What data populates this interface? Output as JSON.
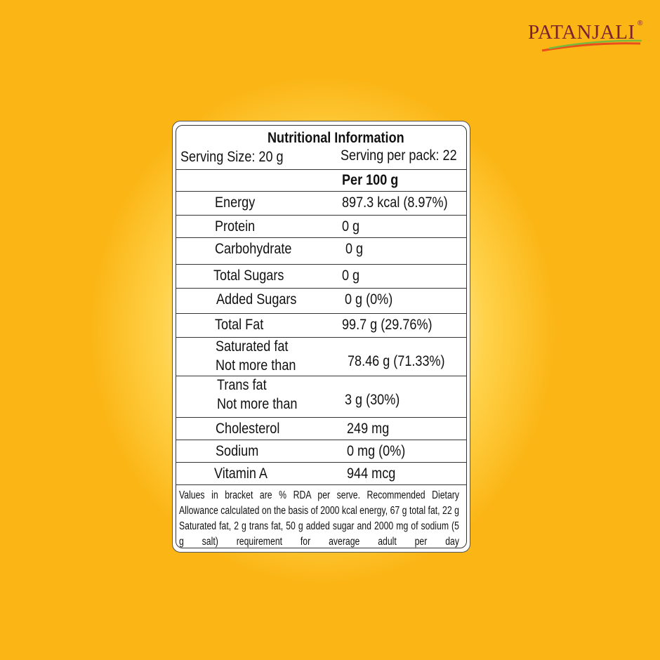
{
  "brand": {
    "logo_text": "PATANJALI",
    "registered_mark": "®"
  },
  "label": {
    "title": "Nutritional Information",
    "serving_size": "Serving Size:  20 g",
    "servings_per_pack": "Serving per pack: 22",
    "column_header": "Per 100 g",
    "rows": [
      {
        "name": "Energy",
        "value": "897.3  kcal (8.97%)"
      },
      {
        "name": "Protein",
        "value": "0 g"
      },
      {
        "name": "Carbohydrate",
        "value": "0 g"
      },
      {
        "name": "Total Sugars",
        "value": "0 g"
      },
      {
        "name": "Added Sugars",
        "value": "0 g (0%)"
      },
      {
        "name": "Total Fat",
        "value": "99.7 g (29.76%)"
      },
      {
        "name": "Saturated fat",
        "name2": "Not more than",
        "value": "78.46 g (71.33%)"
      },
      {
        "name": "Trans fat",
        "name2": "Not more than",
        "value": "3 g (30%)"
      },
      {
        "name": "Cholesterol",
        "value": "249 mg"
      },
      {
        "name": "Sodium",
        "value": "0 mg (0%)"
      },
      {
        "name": "Vitamin A",
        "value": "944 mcg"
      }
    ],
    "footnote": "Values in bracket are % RDA per serve. Recommended Dietary Allowance calculated on the basis of 2000 kcal energy, 67 g total fat, 22 g Saturated fat, 2 g trans fat, 50 g added sugar and 2000 mg of sodium (5 g salt) requirement for average adult per day"
  },
  "colors": {
    "background": "#fbb616",
    "logo": "#7a2230"
  }
}
